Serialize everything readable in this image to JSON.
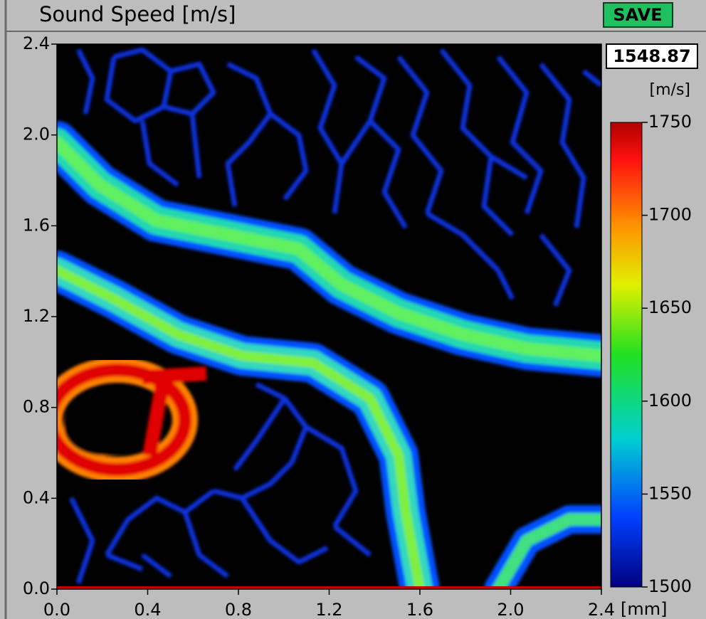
{
  "panel": {
    "title": "Sound Speed [m/s]",
    "save_button": "SAVE"
  },
  "readout": {
    "value": "1548.87",
    "unit": "[m/s]"
  },
  "plot": {
    "xlim": [
      0,
      2.4
    ],
    "ylim": [
      0,
      2.4
    ],
    "xticks": [
      {
        "value": 0,
        "label": "0.0"
      },
      {
        "value": 0.4,
        "label": "0.4"
      },
      {
        "value": 0.8,
        "label": "0.8"
      },
      {
        "value": 1.2,
        "label": "1.2"
      },
      {
        "value": 1.6,
        "label": "1.6"
      },
      {
        "value": 2.0,
        "label": "2.0"
      },
      {
        "value": 2.4,
        "label": "2.4"
      }
    ],
    "yticks": [
      {
        "value": 0,
        "label": "0.0"
      },
      {
        "value": 0.4,
        "label": "0.4"
      },
      {
        "value": 0.8,
        "label": "0.8"
      },
      {
        "value": 1.2,
        "label": "1.2"
      },
      {
        "value": 1.6,
        "label": "1.6"
      },
      {
        "value": 2.0,
        "label": "2.0"
      },
      {
        "value": 2.4,
        "label": "2.4"
      }
    ],
    "x_unit": "[mm]"
  },
  "colorbar": {
    "clim": [
      1500,
      1750
    ],
    "ticks": [
      1500,
      1550,
      1600,
      1650,
      1700,
      1750
    ]
  }
}
